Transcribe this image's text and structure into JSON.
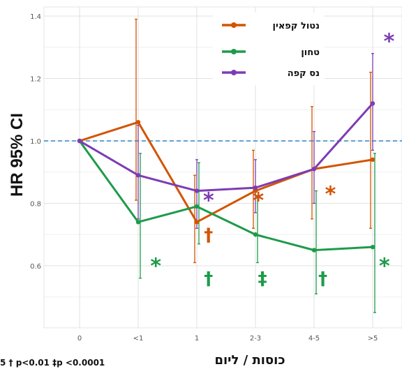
{
  "chart_data": {
    "type": "line",
    "title": "",
    "xlabel": "כוסות / ליום",
    "ylabel": "HR 95% CI",
    "categories": [
      "0",
      "<1",
      "1",
      "2-3",
      "4-5",
      ">5"
    ],
    "yticks": [
      "0.6",
      "0.8",
      "1.0",
      "1.2",
      "1.4"
    ],
    "ylim": [
      0.45,
      1.42
    ],
    "reference_line": 1.0,
    "grid": true,
    "legend_position": "top-right",
    "series": [
      {
        "name": "נטול קפאין",
        "color": "#d35400",
        "values": [
          1.0,
          1.06,
          0.74,
          0.84,
          0.91,
          0.94
        ],
        "ci_low": [
          1.0,
          0.81,
          0.61,
          0.72,
          0.75,
          0.72
        ],
        "ci_high": [
          1.0,
          1.39,
          0.89,
          0.97,
          1.11,
          1.22
        ]
      },
      {
        "name": "טחון",
        "color": "#1e9b4a",
        "values": [
          1.0,
          0.74,
          0.79,
          0.7,
          0.65,
          0.66
        ],
        "ci_low": [
          1.0,
          0.56,
          0.67,
          0.61,
          0.51,
          0.45
        ],
        "ci_high": [
          1.0,
          0.96,
          0.93,
          0.82,
          0.84,
          0.96
        ]
      },
      {
        "name": "נס קפה",
        "color": "#7d3cb4",
        "values": [
          1.0,
          0.89,
          0.84,
          0.85,
          0.91,
          1.12
        ],
        "ci_low": [
          1.0,
          0.75,
          0.72,
          0.77,
          0.8,
          0.97
        ],
        "ci_high": [
          1.0,
          1.05,
          0.94,
          0.94,
          1.03,
          1.28
        ]
      }
    ],
    "annotations": [
      {
        "text": "*",
        "color": "#7d3cb4",
        "cat": 2.2,
        "y": 0.81,
        "size": 30
      },
      {
        "text": "*",
        "color": "#7d3cb4",
        "cat": 3.05,
        "y": 0.81,
        "size": 30
      },
      {
        "text": "*",
        "color": "#7d3cb4",
        "cat": 5.28,
        "y": 1.32,
        "size": 30
      },
      {
        "text": "*",
        "color": "#d35400",
        "cat": 3.05,
        "y": 1.0,
        "size": 30,
        "yv": 0.81
      },
      {
        "text": "*",
        "color": "#d35400",
        "cat": 4.28,
        "y": 0.83,
        "size": 30
      },
      {
        "text": "†",
        "color": "#d35400",
        "cat": 2.2,
        "y": 0.7,
        "size": 26
      },
      {
        "text": "*",
        "color": "#1e9b4a",
        "cat": 1.3,
        "y": 0.6,
        "size": 30
      },
      {
        "text": "†",
        "color": "#1e9b4a",
        "cat": 2.2,
        "y": 0.56,
        "size": 26
      },
      {
        "text": "‡",
        "color": "#1e9b4a",
        "cat": 3.12,
        "y": 0.56,
        "size": 26
      },
      {
        "text": "†",
        "color": "#1e9b4a",
        "cat": 4.15,
        "y": 0.56,
        "size": 26
      },
      {
        "text": "*",
        "color": "#1e9b4a",
        "cat": 5.2,
        "y": 0.6,
        "size": 30
      }
    ],
    "footnote": "5  † p<0.01  ‡p <0.0001"
  }
}
